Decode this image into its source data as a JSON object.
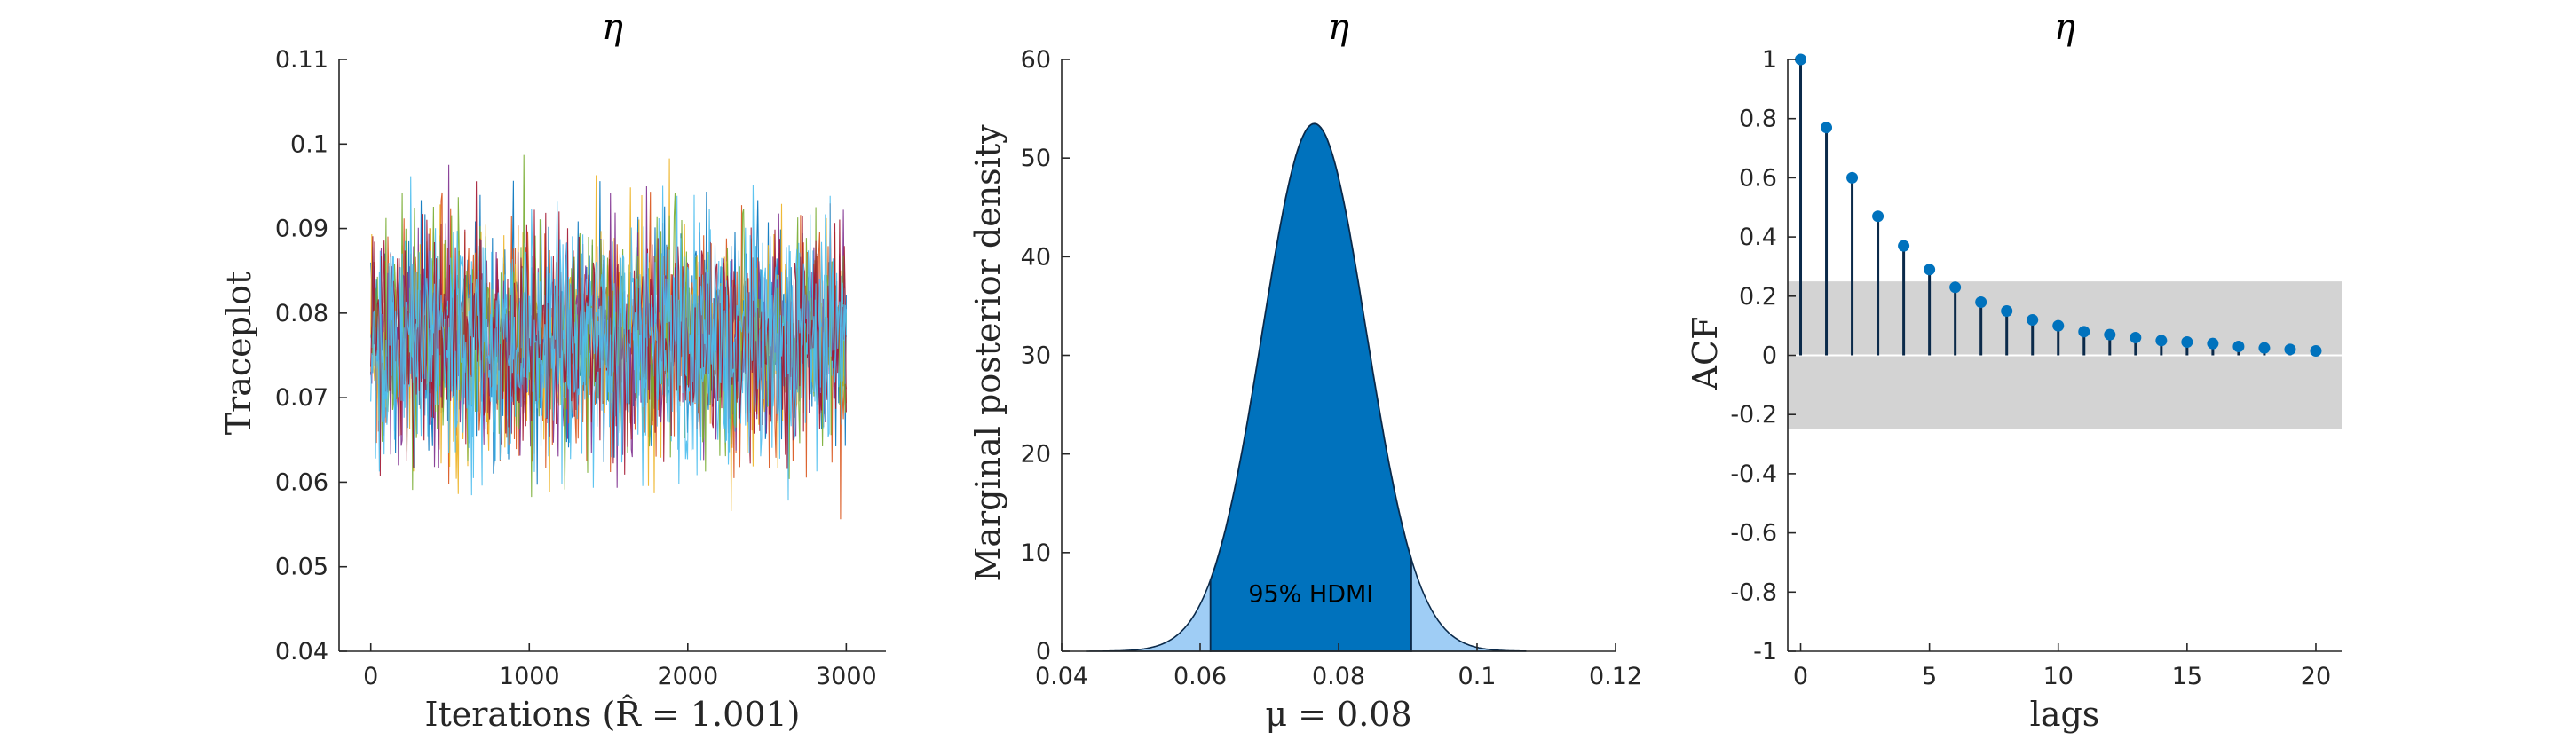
{
  "chart_data": [
    {
      "type": "line",
      "title": "η",
      "xlabel": "Iterations (R̂ = 1.001)",
      "ylabel": "Traceplot",
      "xlim": [
        -200,
        3250
      ],
      "ylim": [
        0.04,
        0.11
      ],
      "x_ticks": [
        0,
        1000,
        2000,
        3000
      ],
      "x_tick_labels": [
        "0",
        "1000",
        "2000",
        "3000"
      ],
      "y_ticks": [
        0.04,
        0.05,
        0.06,
        0.07,
        0.08,
        0.09,
        0.1,
        0.11
      ],
      "y_tick_labels": [
        "0.04",
        "0.05",
        "0.06",
        "0.07",
        "0.08",
        "0.09",
        "0.1",
        "0.11"
      ],
      "iterations": 3000,
      "chain_colors": [
        "#0072BD",
        "#D95319",
        "#EDB120",
        "#7E2F8E",
        "#77AC30",
        "#4DBEEE",
        "#A2142F",
        "#4DBEEE"
      ],
      "trace_mean": 0.077,
      "trace_sd": 0.0075,
      "grid": false
    },
    {
      "type": "area",
      "title": "η",
      "xlabel": "μ = 0.08",
      "ylabel": "Marginal posterior density",
      "xlim": [
        0.04,
        0.12
      ],
      "ylim": [
        0,
        60
      ],
      "x_ticks": [
        0.04,
        0.06,
        0.08,
        0.1,
        0.12
      ],
      "x_tick_labels": [
        "0.04",
        "0.06",
        "0.08",
        "0.1",
        "0.12"
      ],
      "y_ticks": [
        0,
        10,
        20,
        30,
        40,
        50,
        60
      ],
      "y_tick_labels": [
        "0",
        "10",
        "20",
        "30",
        "40",
        "50",
        "60"
      ],
      "density_mean": 0.0765,
      "density_sd": 0.0075,
      "density_peak": 53.5,
      "support": [
        0.0435,
        0.107
      ],
      "hdmi": [
        0.0615,
        0.0905
      ],
      "hdmi_label": "95% HDMI",
      "colors": {
        "hdmi_fill": "#0072BD",
        "tail_fill": "#9FCDF5",
        "outline": "#0B2A4A"
      },
      "grid": false
    },
    {
      "type": "scatter",
      "title": "η",
      "xlabel": "lags",
      "ylabel": "ACF",
      "xlim": [
        -0.5,
        21
      ],
      "ylim": [
        -1,
        1
      ],
      "x_ticks": [
        0,
        5,
        10,
        15,
        20
      ],
      "x_tick_labels": [
        "0",
        "5",
        "10",
        "15",
        "20"
      ],
      "y_ticks": [
        -1,
        -0.8,
        -0.6,
        -0.4,
        -0.2,
        0,
        0.2,
        0.4,
        0.6,
        0.8,
        1
      ],
      "y_tick_labels": [
        "-1",
        "-0.8",
        "-0.6",
        "-0.4",
        "-0.2",
        "0",
        "0.2",
        "0.4",
        "0.6",
        "0.8",
        "1"
      ],
      "lags": [
        0,
        1,
        2,
        3,
        4,
        5,
        6,
        7,
        8,
        9,
        10,
        11,
        12,
        13,
        14,
        15,
        16,
        17,
        18,
        19,
        20
      ],
      "acf": [
        1.0,
        0.77,
        0.6,
        0.47,
        0.37,
        0.29,
        0.23,
        0.18,
        0.15,
        0.12,
        0.1,
        0.08,
        0.07,
        0.06,
        0.05,
        0.045,
        0.04,
        0.03,
        0.025,
        0.02,
        0.015
      ],
      "confidence_band": [
        -0.25,
        0.25
      ],
      "colors": {
        "stem": "#0B2A4A",
        "marker": "#0072BD",
        "band": "#D3D3D3",
        "zero_line": "#ffffff"
      },
      "grid": false
    }
  ]
}
